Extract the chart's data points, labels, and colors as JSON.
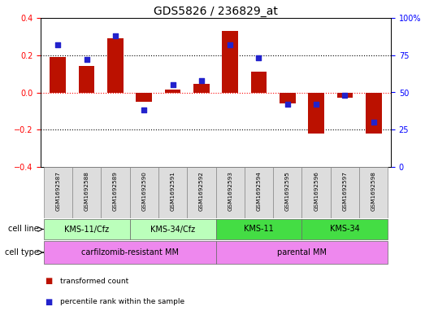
{
  "title": "GDS5826 / 236829_at",
  "samples": [
    "GSM1692587",
    "GSM1692588",
    "GSM1692589",
    "GSM1692590",
    "GSM1692591",
    "GSM1692592",
    "GSM1692593",
    "GSM1692594",
    "GSM1692595",
    "GSM1692596",
    "GSM1692597",
    "GSM1692598"
  ],
  "bar_values": [
    0.19,
    0.14,
    0.29,
    -0.05,
    0.015,
    0.045,
    0.33,
    0.11,
    -0.06,
    -0.22,
    -0.03,
    -0.22
  ],
  "scatter_values": [
    82,
    72,
    88,
    38,
    55,
    58,
    82,
    73,
    42,
    42,
    48,
    30
  ],
  "ylim": [
    -0.4,
    0.4
  ],
  "y2lim": [
    0,
    100
  ],
  "yticks": [
    -0.4,
    -0.2,
    0.0,
    0.2,
    0.4
  ],
  "y2ticks": [
    0,
    25,
    50,
    75,
    100
  ],
  "y2ticklabels": [
    "0",
    "25",
    "50",
    "75",
    "100%"
  ],
  "bar_color": "#bb1100",
  "scatter_color": "#2222cc",
  "cell_line_groups": [
    {
      "label": "KMS-11/Cfz",
      "start": 0,
      "end": 3,
      "color": "#bbffbb"
    },
    {
      "label": "KMS-34/Cfz",
      "start": 3,
      "end": 6,
      "color": "#bbffbb"
    },
    {
      "label": "KMS-11",
      "start": 6,
      "end": 9,
      "color": "#44dd44"
    },
    {
      "label": "KMS-34",
      "start": 9,
      "end": 12,
      "color": "#44dd44"
    }
  ],
  "cell_type_groups": [
    {
      "label": "carfilzomib-resistant MM",
      "start": 0,
      "end": 6,
      "color": "#ee88ee"
    },
    {
      "label": "parental MM",
      "start": 6,
      "end": 12,
      "color": "#ee88ee"
    }
  ],
  "row_labels": [
    "cell line",
    "cell type"
  ],
  "legend_items": [
    {
      "label": "transformed count",
      "color": "#bb1100"
    },
    {
      "label": "percentile rank within the sample",
      "color": "#2222cc"
    }
  ],
  "sample_bg": "#dddddd",
  "plot_bg": "#ffffff",
  "tick_fontsize": 7,
  "title_fontsize": 10
}
